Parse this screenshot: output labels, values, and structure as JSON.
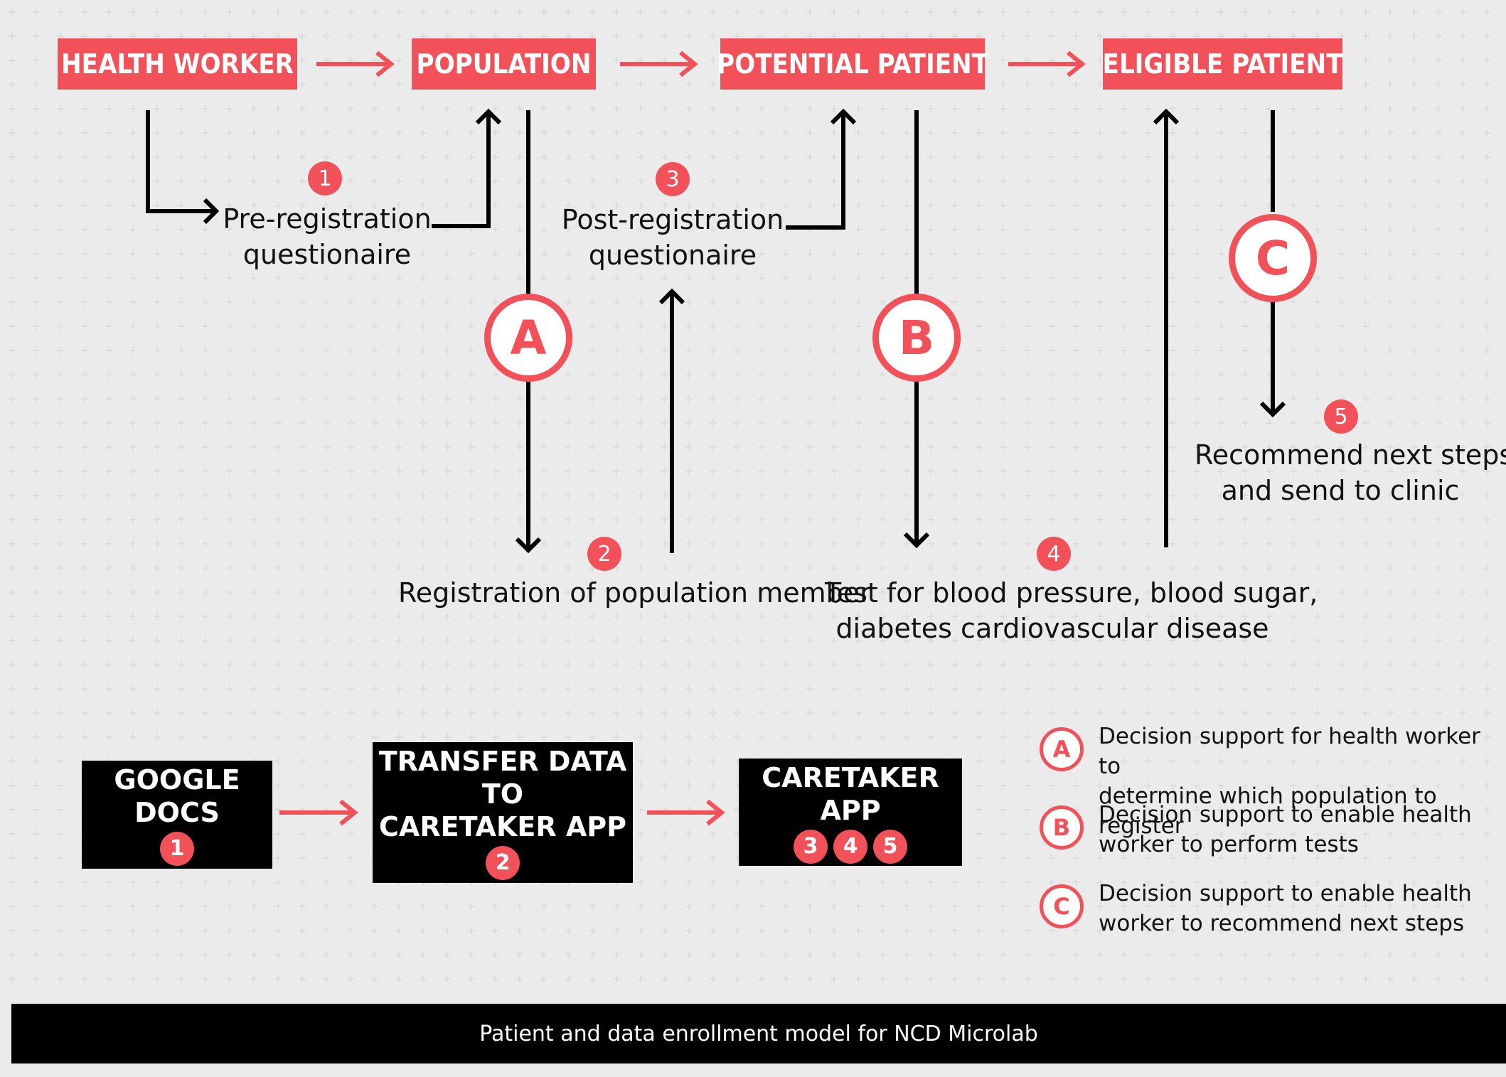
{
  "flow": {
    "health_worker": "HEALTH WORKER",
    "population": "POPULATION",
    "potential_patient": "POTENTIAL PATIENT",
    "eligible_patient": "ELIGIBLE PATIENT"
  },
  "steps": {
    "s1": "1",
    "s2": "2",
    "s3": "3",
    "s4": "4",
    "s5": "5"
  },
  "labels": {
    "pre_registration": [
      "Pre-registration",
      "questionaire"
    ],
    "post_registration": [
      "Post-registration",
      "questionaire"
    ],
    "registration": "Registration of population member",
    "test": [
      "Test for blood pressure, blood sugar,",
      "diabetes cardiovascular disease"
    ],
    "recommend": [
      "Recommend next steps",
      "and send to clinic"
    ]
  },
  "decisions": {
    "a": "A",
    "b": "B",
    "c": "C"
  },
  "tools": {
    "google_docs": "GOOGLE DOCS",
    "transfer": [
      "TRANSFER DATA TO",
      "CARETAKER APP"
    ],
    "caretaker": "CARETAKER APP"
  },
  "legend": {
    "a_text": [
      "Decision support for health worker to",
      "determine which population to register"
    ],
    "b_text": [
      "Decision support to enable health",
      "worker to perform tests"
    ],
    "c_text": [
      "Decision support to enable health",
      "worker to recommend next steps"
    ]
  },
  "footer": "Patient and data enrollment model for NCD Microlab",
  "colors": {
    "accent": "#f2515a",
    "dark": "#000000",
    "grid": "#e2e2e2"
  }
}
